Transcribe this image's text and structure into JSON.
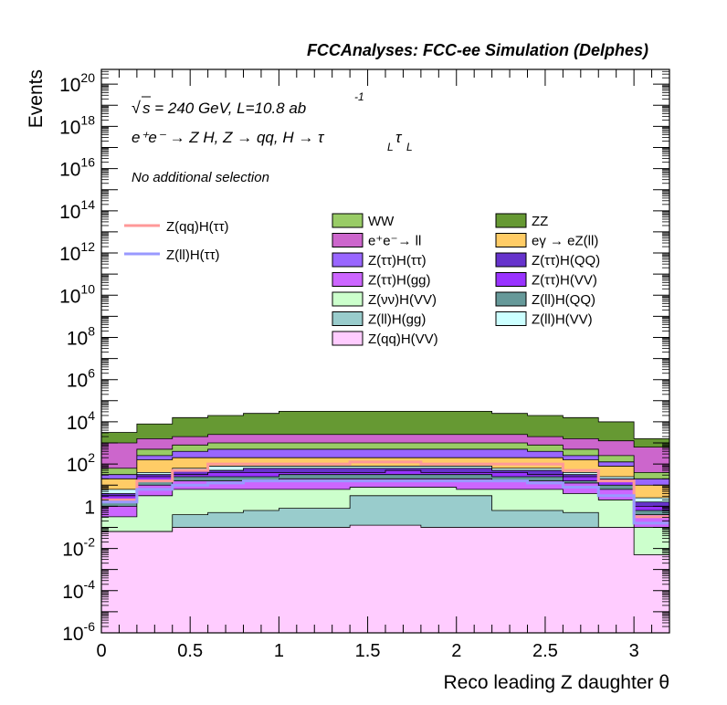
{
  "chart_data": {
    "type": "stacked-histogram",
    "title": "FCCAnalyses: FCC-ee Simulation (Delphes)",
    "xlabel": "Reco leading Z daughter θ",
    "ylabel": "Events",
    "yscale": "log",
    "xlim": [
      0,
      3.2
    ],
    "ylim_exp": [
      -6,
      20.7
    ],
    "x_ticks": [
      0,
      0.5,
      1,
      1.5,
      2,
      2.5,
      3
    ],
    "x_tick_labels": [
      "0",
      "0.5",
      "1",
      "1.5",
      "2",
      "2.5",
      "3"
    ],
    "y_ticks": [
      {
        "base": "10",
        "exp": "20",
        "value": 20
      },
      {
        "base": "10",
        "exp": "18",
        "value": 18
      },
      {
        "base": "10",
        "exp": "16",
        "value": 16
      },
      {
        "base": "10",
        "exp": "14",
        "value": 14
      },
      {
        "base": "10",
        "exp": "12",
        "value": 12
      },
      {
        "base": "10",
        "exp": "10",
        "value": 10
      },
      {
        "base": "10",
        "exp": "8",
        "value": 8
      },
      {
        "base": "10",
        "exp": "6",
        "value": 6
      },
      {
        "base": "10",
        "exp": "4",
        "value": 4
      },
      {
        "base": "10",
        "exp": "2",
        "value": 2
      },
      {
        "base": "1",
        "exp": "",
        "value": 0
      },
      {
        "base": "10",
        "exp": "-2",
        "value": -2
      },
      {
        "base": "10",
        "exp": "-4",
        "value": -4
      },
      {
        "base": "10",
        "exp": "-6",
        "value": -6
      }
    ],
    "bin_edges": [
      0,
      0.2,
      0.4,
      0.6,
      0.8,
      1.0,
      1.2,
      1.4,
      1.6,
      1.8,
      2.0,
      2.2,
      2.4,
      2.6,
      2.8,
      3.0,
      3.2
    ],
    "annotations": {
      "energy_sqrt": "s",
      "energy_rest": " = 240 GeV, L=10.8 ab",
      "energy_sup": "-1",
      "process": "e⁺e⁻ → Z H, Z → qq, H → τ",
      "process_sub": "L",
      "process_tau2": "τ",
      "process_sub2": "L",
      "selection": "No additional selection"
    },
    "stack_tops_log10": [
      {
        "name": "Z(qq)H(VV)",
        "color": "#ffccff",
        "values": [
          -1.2,
          -1.2,
          -1.0,
          -1.0,
          -1.0,
          -1.0,
          -1.0,
          -0.9,
          -0.9,
          -1.0,
          -1.0,
          -1.0,
          -1.0,
          -1.0,
          -1.0,
          -2.3
        ]
      },
      {
        "name": "Z(ll)H(gg)",
        "color": "#99cccc",
        "values": [
          -1.2,
          -1.2,
          -0.4,
          -0.3,
          -0.2,
          -0.1,
          -0.1,
          0.5,
          0.5,
          0.5,
          0.5,
          -0.2,
          -0.2,
          -0.3,
          -1.0,
          -2.3
        ]
      },
      {
        "name": "Z(νν)H(VV)",
        "color": "#ccffcc",
        "values": [
          -0.5,
          0.5,
          0.8,
          0.8,
          0.8,
          0.8,
          0.8,
          0.9,
          0.9,
          0.9,
          0.8,
          0.8,
          0.8,
          0.6,
          0.3,
          -1.0
        ]
      },
      {
        "name": "Z(ττ)H(gg)",
        "color": "#cc66ff",
        "values": [
          0.0,
          1.0,
          1.2,
          1.2,
          1.2,
          1.3,
          1.3,
          1.3,
          1.3,
          1.3,
          1.3,
          1.2,
          1.2,
          1.1,
          0.8,
          -0.4
        ]
      },
      {
        "name": "Z(ll)H(QQ)",
        "color": "#669999",
        "values": [
          0.3,
          1.2,
          1.4,
          1.4,
          1.4,
          1.5,
          1.5,
          1.5,
          1.5,
          1.5,
          1.5,
          1.4,
          1.4,
          1.2,
          1.0,
          -0.2
        ]
      },
      {
        "name": "Z(ττ)H(VV)",
        "color": "#9933ff",
        "values": [
          0.5,
          1.4,
          1.5,
          1.6,
          1.6,
          1.6,
          1.6,
          1.6,
          1.7,
          1.6,
          1.6,
          1.6,
          1.5,
          1.4,
          1.2,
          0.0
        ]
      },
      {
        "name": "Z(ττ)H(QQ)",
        "color": "#6633cc",
        "values": [
          0.6,
          1.5,
          1.7,
          1.7,
          1.8,
          1.8,
          1.8,
          1.8,
          1.8,
          1.8,
          1.8,
          1.7,
          1.7,
          1.5,
          1.3,
          0.2
        ]
      },
      {
        "name": "Z(ll)H(VV)",
        "color": "#ccffff",
        "values": [
          0.8,
          1.6,
          1.8,
          1.9,
          1.9,
          1.9,
          1.9,
          1.9,
          1.9,
          1.9,
          1.9,
          1.8,
          1.8,
          1.6,
          1.4,
          0.4
        ]
      },
      {
        "name": "eγ → eZ(ll)",
        "color": "#ffcc66",
        "values": [
          1.3,
          2.2,
          2.3,
          2.3,
          2.3,
          2.3,
          2.3,
          2.3,
          2.3,
          2.3,
          2.3,
          2.3,
          2.3,
          2.2,
          1.9,
          1.0
        ]
      },
      {
        "name": "Z(ττ)H(ττ)",
        "color": "#9966ff",
        "values": [
          1.5,
          2.4,
          2.6,
          2.7,
          2.7,
          2.7,
          2.7,
          2.7,
          2.7,
          2.7,
          2.7,
          2.7,
          2.6,
          2.4,
          2.1,
          1.3
        ]
      },
      {
        "name": "WW",
        "color": "#99cc66",
        "values": [
          1.8,
          2.7,
          2.9,
          3.0,
          3.0,
          3.0,
          3.0,
          3.0,
          3.0,
          3.0,
          3.0,
          3.0,
          2.9,
          2.7,
          2.4,
          1.6
        ]
      },
      {
        "name": "e⁺e⁻→ ll",
        "color": "#cc66cc",
        "values": [
          3.0,
          3.2,
          3.3,
          3.4,
          3.4,
          3.4,
          3.4,
          3.4,
          3.4,
          3.4,
          3.4,
          3.4,
          3.3,
          3.2,
          3.1,
          2.8
        ]
      },
      {
        "name": "ZZ",
        "color": "#669933",
        "values": [
          3.5,
          3.9,
          4.2,
          4.3,
          4.4,
          4.5,
          4.5,
          4.5,
          4.5,
          4.5,
          4.5,
          4.4,
          4.3,
          4.2,
          4.0,
          3.2
        ]
      }
    ],
    "signal_lines_log10": [
      {
        "name": "Z(qq)H(ττ)",
        "color": "#ff9999",
        "values": [
          0.3,
          1.2,
          1.7,
          2.0,
          2.0,
          2.0,
          2.0,
          2.1,
          2.1,
          2.0,
          2.0,
          2.0,
          2.0,
          1.7,
          1.2,
          -0.5
        ]
      },
      {
        "name": "Z(ll)H(ττ)",
        "color": "#9999ff",
        "values": [
          0.2,
          0.8,
          1.0,
          1.1,
          1.2,
          1.2,
          1.2,
          1.2,
          1.2,
          1.2,
          1.2,
          1.2,
          1.1,
          0.9,
          0.5,
          -0.8
        ]
      }
    ],
    "legend": {
      "signal": [
        "Z(qq)H(ττ)",
        "Z(ll)H(ττ)"
      ],
      "col1": [
        "WW",
        "e⁺e⁻→ ll",
        "Z(ττ)H(ττ)",
        "Z(ττ)H(gg)",
        "Z(νν)H(VV)",
        "Z(ll)H(gg)",
        "Z(qq)H(VV)"
      ],
      "col2": [
        "ZZ",
        "eγ → eZ(ll)",
        "Z(ττ)H(QQ)",
        "Z(ττ)H(VV)",
        "Z(ll)H(QQ)",
        "Z(ll)H(VV)"
      ]
    }
  }
}
